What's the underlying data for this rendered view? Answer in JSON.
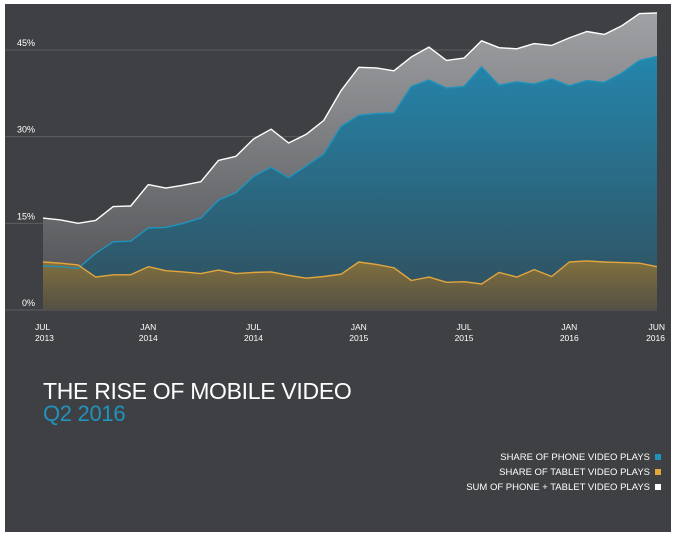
{
  "chart_data": {
    "type": "area",
    "title": "THE RISE OF MOBILE VIDEO",
    "subtitle": "Q2 2016",
    "xlabel": "",
    "ylabel": "",
    "ylim": [
      0,
      52
    ],
    "y_ticks": [
      "0%",
      "15%",
      "30%",
      "45%"
    ],
    "y_tick_values": [
      0,
      15,
      30,
      45
    ],
    "x_ticks": [
      {
        "month": "JUL",
        "year": "2013",
        "index": 0
      },
      {
        "month": "JAN",
        "year": "2014",
        "index": 6
      },
      {
        "month": "JUL",
        "year": "2014",
        "index": 12
      },
      {
        "month": "JAN",
        "year": "2015",
        "index": 18
      },
      {
        "month": "JUL",
        "year": "2015",
        "index": 24
      },
      {
        "month": "JAN",
        "year": "2016",
        "index": 30
      },
      {
        "month": "JUN",
        "year": "2016",
        "index": 35
      }
    ],
    "x_count": 36,
    "series": [
      {
        "name": "SHARE OF PHONE VIDEO PLAYS",
        "color": "#1f93bd",
        "values": [
          7.6,
          7.5,
          7.2,
          9.8,
          11.8,
          11.9,
          14.2,
          14.3,
          15.0,
          15.9,
          19.0,
          20.3,
          23.1,
          24.7,
          22.9,
          24.9,
          27.0,
          31.8,
          33.7,
          34.0,
          34.1,
          38.7,
          39.8,
          38.4,
          38.7,
          42.1,
          38.9,
          39.5,
          39.1,
          40.0,
          38.8,
          39.7,
          39.4,
          41.0,
          43.2,
          43.9
        ]
      },
      {
        "name": "SHARE OF TABLET VIDEO PLAYS",
        "color": "#e2a63d",
        "values": [
          8.3,
          8.1,
          7.8,
          5.7,
          6.1,
          6.1,
          7.5,
          6.8,
          6.6,
          6.3,
          6.9,
          6.3,
          6.5,
          6.6,
          6.0,
          5.5,
          5.8,
          6.2,
          8.3,
          7.9,
          7.3,
          5.1,
          5.7,
          4.8,
          4.9,
          4.5,
          6.5,
          5.7,
          7.0,
          5.8,
          8.3,
          8.5,
          8.3,
          8.2,
          8.1,
          7.5
        ]
      },
      {
        "name": "SUM OF PHONE + TABLET VIDEO PLAYS",
        "color": "#ffffff",
        "values": [
          15.9,
          15.6,
          15.0,
          15.5,
          17.9,
          18.0,
          21.7,
          21.1,
          21.6,
          22.2,
          25.9,
          26.6,
          29.6,
          31.3,
          28.9,
          30.4,
          32.8,
          38.0,
          42.0,
          41.9,
          41.4,
          43.8,
          45.5,
          43.2,
          43.6,
          46.6,
          45.4,
          45.2,
          46.1,
          45.8,
          47.1,
          48.2,
          47.7,
          49.2,
          51.3,
          51.4
        ]
      }
    ],
    "legend_position": "bottom-right",
    "grid": true
  },
  "legend": [
    {
      "label": "SHARE OF PHONE VIDEO PLAYS",
      "color": "#1f93bd"
    },
    {
      "label": "SHARE OF TABLET VIDEO PLAYS",
      "color": "#e2a63d"
    },
    {
      "label": "SUM OF PHONE + TABLET VIDEO PLAYS",
      "color": "#ffffff"
    }
  ]
}
